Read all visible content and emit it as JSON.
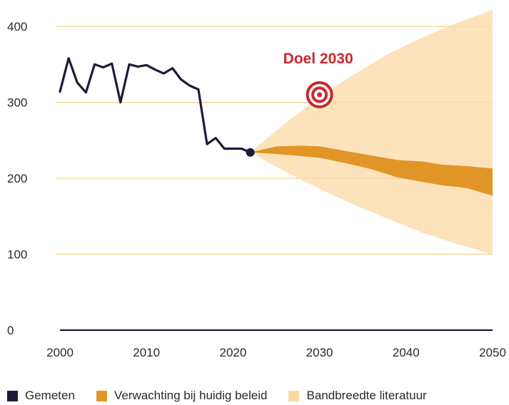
{
  "colors": {
    "measured": "#1b1d3a",
    "forecast": "#e29527",
    "band": "#fbd9a6",
    "grid": "#f1d08e",
    "target": "#c8282e",
    "axis": "#1b1d3a"
  },
  "chart_data": {
    "type": "line",
    "xlim": [
      2000,
      2050
    ],
    "ylim": [
      0,
      400
    ],
    "x_ticks": [
      2000,
      2010,
      2020,
      2030,
      2040,
      2050
    ],
    "y_ticks": [
      0,
      100,
      200,
      300,
      400
    ],
    "x_tick_labels": [
      "2000",
      "2010",
      "2020",
      "2030",
      "2040",
      "2050"
    ],
    "y_tick_labels": [
      "0",
      "100",
      "200",
      "300",
      "400"
    ],
    "gridlines": "horizontal",
    "series": [
      {
        "name": "Gemeten",
        "style": "line",
        "points": [
          [
            2000,
            314
          ],
          [
            2001,
            358
          ],
          [
            2002,
            326
          ],
          [
            2003,
            313
          ],
          [
            2004,
            350
          ],
          [
            2005,
            346
          ],
          [
            2006,
            351
          ],
          [
            2007,
            300
          ],
          [
            2008,
            350
          ],
          [
            2009,
            347
          ],
          [
            2010,
            349
          ],
          [
            2011,
            343
          ],
          [
            2012,
            338
          ],
          [
            2013,
            345
          ],
          [
            2014,
            330
          ],
          [
            2015,
            322
          ],
          [
            2016,
            317
          ],
          [
            2017,
            245
          ],
          [
            2018,
            253
          ],
          [
            2019,
            239
          ],
          [
            2020,
            239
          ],
          [
            2021,
            239
          ],
          [
            2022,
            234
          ]
        ]
      },
      {
        "name": "Verwachting bij huidig beleid",
        "style": "band",
        "points": [
          [
            2022,
            234,
            234
          ],
          [
            2025,
            232,
            242
          ],
          [
            2028,
            229,
            243
          ],
          [
            2030,
            227,
            242
          ],
          [
            2033,
            220,
            236
          ],
          [
            2036,
            212,
            230
          ],
          [
            2039,
            201,
            224
          ],
          [
            2042,
            195,
            222
          ],
          [
            2044,
            191,
            218
          ],
          [
            2047,
            187,
            216
          ],
          [
            2050,
            177,
            213
          ]
        ]
      },
      {
        "name": "Bandbreedte literatuur",
        "style": "band",
        "points": [
          [
            2022,
            234,
            234
          ],
          [
            2026,
            209,
            272
          ],
          [
            2030,
            186,
            307
          ],
          [
            2034,
            165,
            337
          ],
          [
            2038,
            146,
            364
          ],
          [
            2042,
            128,
            386
          ],
          [
            2046,
            113,
            405
          ],
          [
            2050,
            100,
            422
          ]
        ]
      }
    ],
    "annotations": [
      {
        "text": "Doel 2030",
        "x": 2030,
        "y": 310,
        "marker": "target"
      }
    ]
  },
  "legend": [
    {
      "label": "Gemeten",
      "color_key": "measured"
    },
    {
      "label": "Verwachting bij huidig beleid",
      "color_key": "forecast"
    },
    {
      "label": "Bandbreedte literatuur",
      "color_key": "band"
    }
  ]
}
